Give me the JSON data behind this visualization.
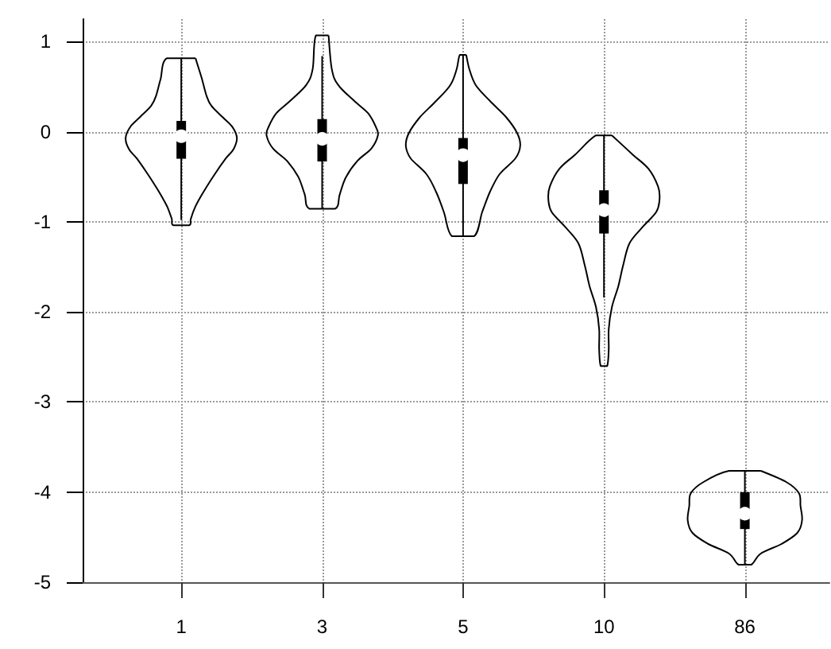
{
  "chart_data": {
    "type": "box",
    "categories": [
      "1",
      "3",
      "5",
      "10",
      "86"
    ],
    "ylim": [
      -5,
      1.25
    ],
    "yticks": [
      -5,
      -4,
      -3,
      -2,
      -1,
      0,
      1
    ],
    "grid": true,
    "series": [
      {
        "color": "#000000",
        "boxes": [
          {
            "low": -0.98,
            "q1": -0.3,
            "median": -0.05,
            "q3": 0.12,
            "high": 0.81
          },
          {
            "low": -0.86,
            "q1": -0.33,
            "median": -0.08,
            "q3": 0.14,
            "high": 0.84
          },
          {
            "low": -1.16,
            "q1": -0.58,
            "median": -0.26,
            "q3": -0.07,
            "high": 0.86
          },
          {
            "low": -1.84,
            "q1": -1.13,
            "median": -0.87,
            "q3": -0.65,
            "high": -0.04
          },
          {
            "low": -4.8,
            "q1": -4.41,
            "median": -4.24,
            "q3": -4.0,
            "high": -3.76
          }
        ]
      }
    ]
  }
}
